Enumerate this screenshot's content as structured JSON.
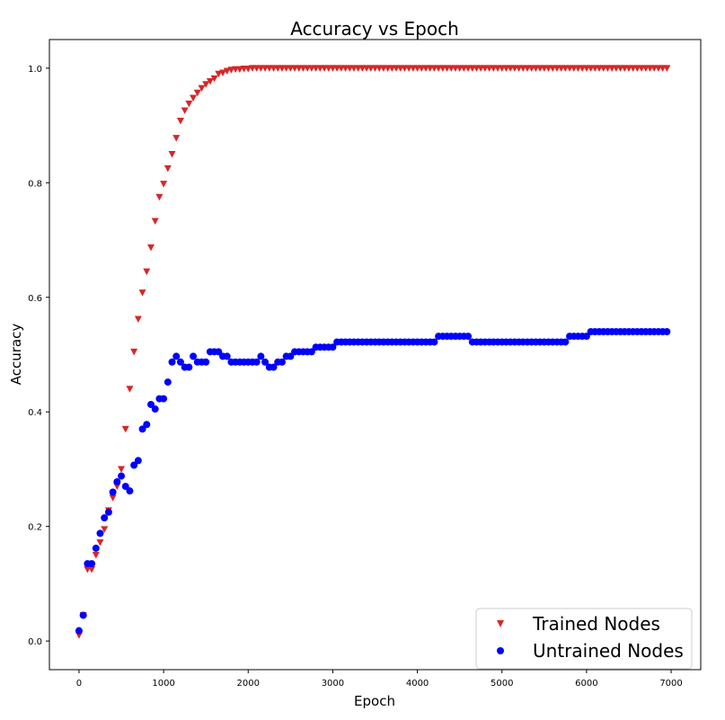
{
  "chart_data": {
    "type": "scatter",
    "title": "Accuracy vs Epoch",
    "xlabel": "Epoch",
    "ylabel": "Accuracy",
    "xlim": [
      -350,
      7350
    ],
    "ylim": [
      -0.05,
      1.05
    ],
    "xticks": [
      0,
      1000,
      2000,
      3000,
      4000,
      5000,
      6000,
      7000
    ],
    "xtick_labels": [
      "0",
      "1000",
      "2000",
      "3000",
      "4000",
      "5000",
      "6000",
      "7000"
    ],
    "yticks": [
      0.0,
      0.2,
      0.4,
      0.6,
      0.8,
      1.0
    ],
    "ytick_labels": [
      "0.0",
      "0.2",
      "0.4",
      "0.6",
      "0.8",
      "1.0"
    ],
    "grid": false,
    "legend_position": "bottom-right",
    "series": [
      {
        "name": "Trained Nodes",
        "marker": "triangle-down",
        "color": "#d62728",
        "x": [
          0,
          50,
          100,
          150,
          200,
          250,
          300,
          350,
          400,
          450,
          500,
          550,
          600,
          650,
          700,
          750,
          800,
          850,
          900,
          950,
          1000,
          1050,
          1100,
          1150,
          1200,
          1250,
          1300,
          1350,
          1400,
          1450,
          1500,
          1550,
          1600,
          1650,
          1700,
          1750,
          1800,
          1850,
          1900,
          1950,
          2000,
          2050,
          2100,
          2150,
          2200,
          2250,
          2300,
          2350,
          2400,
          2450,
          2500,
          2550,
          2600,
          2650,
          2700,
          2750,
          2800,
          2850,
          2900,
          2950,
          3000,
          3050,
          3100,
          3150,
          3200,
          3250,
          3300,
          3350,
          3400,
          3450,
          3500,
          3550,
          3600,
          3650,
          3700,
          3750,
          3800,
          3850,
          3900,
          3950,
          4000,
          4050,
          4100,
          4150,
          4200,
          4250,
          4300,
          4350,
          4400,
          4450,
          4500,
          4550,
          4600,
          4650,
          4700,
          4750,
          4800,
          4850,
          4900,
          4950,
          5000,
          5050,
          5100,
          5150,
          5200,
          5250,
          5300,
          5350,
          5400,
          5450,
          5500,
          5550,
          5600,
          5650,
          5700,
          5750,
          5800,
          5850,
          5900,
          5950,
          6000,
          6050,
          6100,
          6150,
          6200,
          6250,
          6300,
          6350,
          6400,
          6450,
          6500,
          6550,
          6600,
          6650,
          6700,
          6750,
          6800,
          6850,
          6900,
          6950
        ],
        "y": [
          0.01,
          0.045,
          0.125,
          0.125,
          0.15,
          0.172,
          0.195,
          0.228,
          0.25,
          0.27,
          0.3,
          0.37,
          0.44,
          0.505,
          0.562,
          0.608,
          0.645,
          0.687,
          0.733,
          0.775,
          0.798,
          0.825,
          0.85,
          0.878,
          0.908,
          0.926,
          0.938,
          0.948,
          0.957,
          0.965,
          0.972,
          0.977,
          0.982,
          0.99,
          0.992,
          0.995,
          0.997,
          0.998,
          0.998,
          0.999,
          0.999,
          1.0,
          1.0,
          1.0,
          1.0,
          1.0,
          1.0,
          1.0,
          1.0,
          1.0,
          1.0,
          1.0,
          1.0,
          1.0,
          1.0,
          1.0,
          1.0,
          1.0,
          1.0,
          1.0,
          1.0,
          1.0,
          1.0,
          1.0,
          1.0,
          1.0,
          1.0,
          1.0,
          1.0,
          1.0,
          1.0,
          1.0,
          1.0,
          1.0,
          1.0,
          1.0,
          1.0,
          1.0,
          1.0,
          1.0,
          1.0,
          1.0,
          1.0,
          1.0,
          1.0,
          1.0,
          1.0,
          1.0,
          1.0,
          1.0,
          1.0,
          1.0,
          1.0,
          1.0,
          1.0,
          1.0,
          1.0,
          1.0,
          1.0,
          1.0,
          1.0,
          1.0,
          1.0,
          1.0,
          1.0,
          1.0,
          1.0,
          1.0,
          1.0,
          1.0,
          1.0,
          1.0,
          1.0,
          1.0,
          1.0,
          1.0,
          1.0,
          1.0,
          1.0,
          1.0,
          1.0,
          1.0,
          1.0,
          1.0,
          1.0,
          1.0,
          1.0,
          1.0,
          1.0,
          1.0,
          1.0,
          1.0,
          1.0,
          1.0,
          1.0,
          1.0,
          1.0,
          1.0,
          1.0,
          1.0
        ]
      },
      {
        "name": "Untrained Nodes",
        "marker": "circle",
        "color": "#0000ff",
        "x": [
          0,
          50,
          100,
          150,
          200,
          250,
          300,
          350,
          400,
          450,
          500,
          550,
          600,
          650,
          700,
          750,
          800,
          850,
          900,
          950,
          1000,
          1050,
          1100,
          1150,
          1200,
          1250,
          1300,
          1350,
          1400,
          1450,
          1500,
          1550,
          1600,
          1650,
          1700,
          1750,
          1800,
          1850,
          1900,
          1950,
          2000,
          2050,
          2100,
          2150,
          2200,
          2250,
          2300,
          2350,
          2400,
          2450,
          2500,
          2550,
          2600,
          2650,
          2700,
          2750,
          2800,
          2850,
          2900,
          2950,
          3000,
          3050,
          3100,
          3150,
          3200,
          3250,
          3300,
          3350,
          3400,
          3450,
          3500,
          3550,
          3600,
          3650,
          3700,
          3750,
          3800,
          3850,
          3900,
          3950,
          4000,
          4050,
          4100,
          4150,
          4200,
          4250,
          4300,
          4350,
          4400,
          4450,
          4500,
          4550,
          4600,
          4650,
          4700,
          4750,
          4800,
          4850,
          4900,
          4950,
          5000,
          5050,
          5100,
          5150,
          5200,
          5250,
          5300,
          5350,
          5400,
          5450,
          5500,
          5550,
          5600,
          5650,
          5700,
          5750,
          5800,
          5850,
          5900,
          5950,
          6000,
          6050,
          6100,
          6150,
          6200,
          6250,
          6300,
          6350,
          6400,
          6450,
          6500,
          6550,
          6600,
          6650,
          6700,
          6750,
          6800,
          6850,
          6900,
          6950
        ],
        "y": [
          0.018,
          0.045,
          0.135,
          0.135,
          0.162,
          0.188,
          0.215,
          0.225,
          0.26,
          0.278,
          0.288,
          0.27,
          0.262,
          0.307,
          0.315,
          0.37,
          0.378,
          0.413,
          0.405,
          0.423,
          0.423,
          0.452,
          0.487,
          0.497,
          0.487,
          0.478,
          0.478,
          0.497,
          0.487,
          0.487,
          0.487,
          0.505,
          0.505,
          0.505,
          0.497,
          0.497,
          0.487,
          0.487,
          0.487,
          0.487,
          0.487,
          0.487,
          0.487,
          0.497,
          0.487,
          0.478,
          0.478,
          0.487,
          0.487,
          0.497,
          0.497,
          0.505,
          0.505,
          0.505,
          0.505,
          0.505,
          0.513,
          0.513,
          0.513,
          0.513,
          0.513,
          0.522,
          0.522,
          0.522,
          0.522,
          0.522,
          0.522,
          0.522,
          0.522,
          0.522,
          0.522,
          0.522,
          0.522,
          0.522,
          0.522,
          0.522,
          0.522,
          0.522,
          0.522,
          0.522,
          0.522,
          0.522,
          0.522,
          0.522,
          0.522,
          0.532,
          0.532,
          0.532,
          0.532,
          0.532,
          0.532,
          0.532,
          0.532,
          0.522,
          0.522,
          0.522,
          0.522,
          0.522,
          0.522,
          0.522,
          0.522,
          0.522,
          0.522,
          0.522,
          0.522,
          0.522,
          0.522,
          0.522,
          0.522,
          0.522,
          0.522,
          0.522,
          0.522,
          0.522,
          0.522,
          0.522,
          0.532,
          0.532,
          0.532,
          0.532,
          0.532,
          0.54,
          0.54,
          0.54,
          0.54,
          0.54,
          0.54,
          0.54,
          0.54,
          0.54,
          0.54,
          0.54,
          0.54,
          0.54,
          0.54,
          0.54,
          0.54,
          0.54,
          0.54,
          0.54
        ]
      }
    ]
  }
}
